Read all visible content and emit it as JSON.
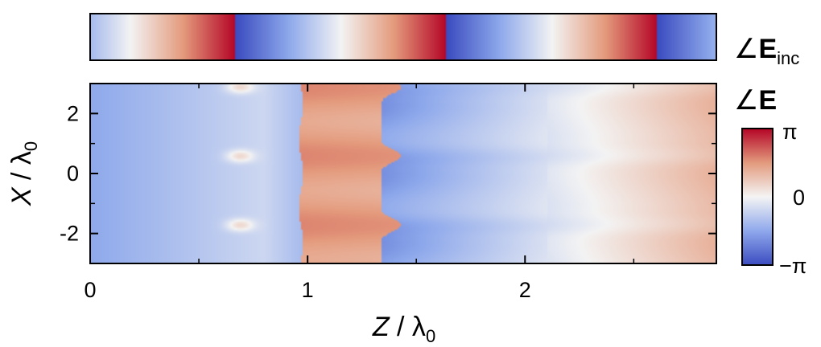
{
  "chart_data": [
    {
      "type": "heatmap",
      "name": "incident-phase-strip",
      "panel_label_symbol": "∠",
      "panel_label_main": "E",
      "panel_label_sub": "inc",
      "xlim": [
        0,
        2.88
      ],
      "description_values": {
        "quantity": "phase of incident field along Z",
        "period_lambda0": 0.97,
        "phase_wraps_at_z": [
          0.66,
          1.63,
          2.6
        ]
      }
    },
    {
      "type": "heatmap",
      "name": "total-field-phase-map",
      "panel_label_symbol": "∠",
      "panel_label_main": "E",
      "xlabel_main": "Z",
      "xlabel_sub": "0",
      "xlabel_sep": " / λ",
      "ylabel_main": "X",
      "ylabel_sep": " / λ",
      "ylabel_sub": "0",
      "xlim": [
        0,
        2.88
      ],
      "ylim": [
        -3,
        3
      ],
      "x_ticks": [
        {
          "value": 0,
          "label": "0"
        },
        {
          "value": 1,
          "label": "1"
        },
        {
          "value": 2,
          "label": "2"
        }
      ],
      "y_ticks": [
        {
          "value": 2,
          "label": "2"
        },
        {
          "value": 0,
          "label": "0"
        },
        {
          "value": -2,
          "label": "-2"
        }
      ],
      "phase_wraps_at_z_approx": [
        0.97,
        1.37
      ],
      "colorbar": {
        "min_label": "−π",
        "mid_label": "0",
        "max_label": "π",
        "min": -3.1416,
        "max": 3.1416,
        "colors": [
          "#3b4cc0",
          "#ffffff",
          "#b40426"
        ]
      }
    }
  ]
}
